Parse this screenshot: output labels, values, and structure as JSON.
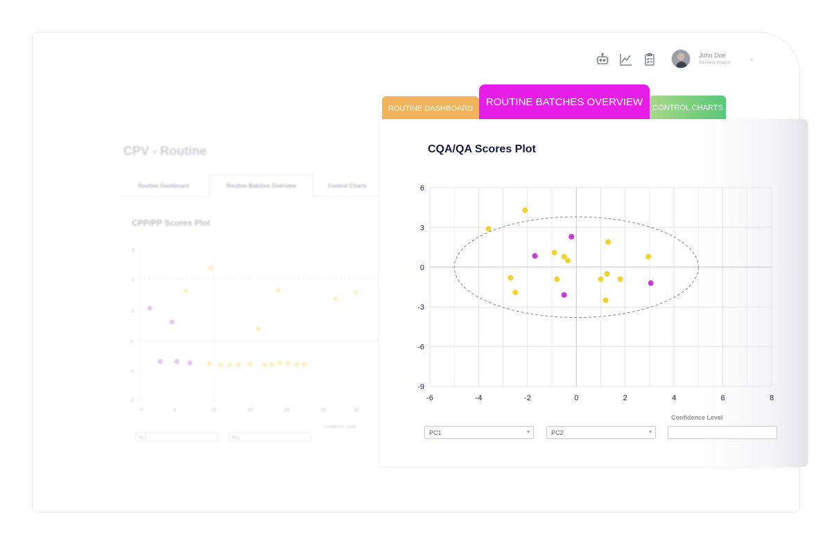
{
  "header": {
    "icons": [
      "robot-icon",
      "line-chart-icon",
      "clipboard-checklist-icon"
    ],
    "user": {
      "name": "John Doe",
      "role": "Business Analyst"
    }
  },
  "background_panel": {
    "title": "CPV - Routine",
    "tabs": [
      "Routine Dashboard",
      "Routine Batches Overview",
      "Control Charts"
    ],
    "active_tab": "Routine Batches Overview",
    "subtitle": "CPP/PP Scores Plot",
    "y_ticks": [
      "3",
      "2",
      "1",
      "0",
      "-1",
      "-2"
    ],
    "x_ticks": [
      "0",
      "5",
      "10",
      "15",
      "20",
      "25",
      "30"
    ],
    "select1": "PC1",
    "select2": "PC2",
    "confidence_label": "Confidence Level"
  },
  "tabs": {
    "dashboard": "ROUTINE DASHBOARD",
    "batches": "ROUTINE BATCHES OVERVIEW",
    "control": "CONTROL CHARTS"
  },
  "colors": {
    "dashboard_tab": "#f0b25a",
    "batches_tab": "#e61ee8",
    "control_tab": "#58c878",
    "point_yellow": "#f2d32e",
    "point_magenta": "#c93ad6"
  },
  "main_card": {
    "title": "CQA/QA Scores Plot",
    "select_pc1": "PC1",
    "select_pc2": "PC2",
    "confidence_label": "Confidence Level",
    "confidence_value": ""
  },
  "chart_data": {
    "type": "scatter",
    "title": "CQA/QA Scores Plot",
    "xlim": [
      -6,
      8
    ],
    "ylim": [
      -9,
      6
    ],
    "x_ticks": [
      -6,
      -4,
      -2,
      0,
      2,
      4,
      6,
      8
    ],
    "y_ticks": [
      6,
      3,
      0,
      -3,
      -6,
      -9
    ],
    "grid": true,
    "confidence_ellipse": {
      "center": [
        0,
        0
      ],
      "rx": 5,
      "ry": 3.8
    },
    "series": [
      {
        "color": "#f2d32e",
        "points": [
          [
            -3.6,
            2.9
          ],
          [
            -2.1,
            4.3
          ],
          [
            -0.9,
            1.1
          ],
          [
            -0.5,
            0.8
          ],
          [
            -0.35,
            0.5
          ],
          [
            -2.7,
            -0.8
          ],
          [
            -2.5,
            -1.9
          ],
          [
            -0.8,
            -0.9
          ],
          [
            1.0,
            -0.9
          ],
          [
            1.25,
            -0.5
          ],
          [
            1.8,
            -0.9
          ],
          [
            1.3,
            1.9
          ],
          [
            2.95,
            0.8
          ],
          [
            1.2,
            -2.5
          ]
        ]
      },
      {
        "color": "#c93ad6",
        "points": [
          [
            -1.7,
            0.85
          ],
          [
            -0.2,
            2.3
          ],
          [
            -0.5,
            -2.1
          ],
          [
            3.05,
            -1.2
          ]
        ]
      }
    ]
  }
}
